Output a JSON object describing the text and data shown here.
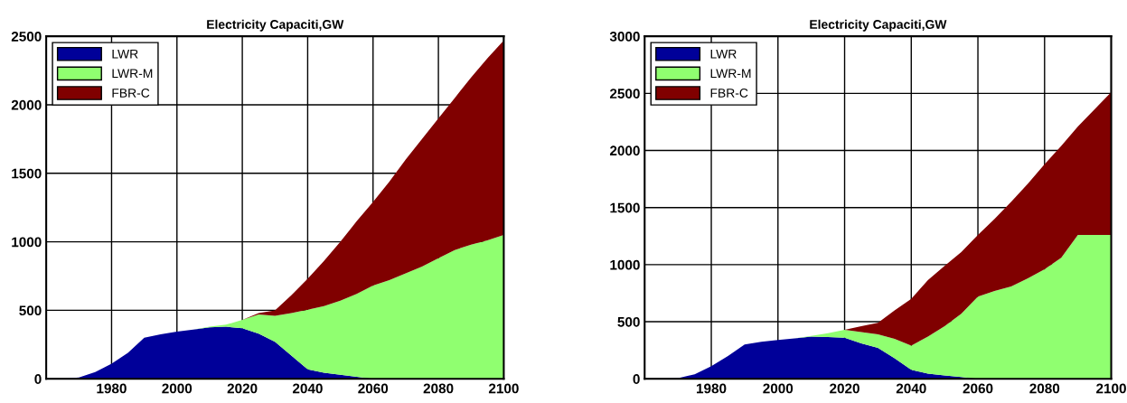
{
  "chart_data": [
    {
      "type": "area",
      "stacked": true,
      "title": "Electricity Capaciti,GW",
      "x": [
        1960,
        1965,
        1970,
        1975,
        1980,
        1985,
        1990,
        1995,
        2000,
        2005,
        2010,
        2015,
        2020,
        2025,
        2030,
        2035,
        2040,
        2045,
        2050,
        2055,
        2060,
        2065,
        2070,
        2075,
        2080,
        2085,
        2090,
        2095,
        2100
      ],
      "series": [
        {
          "name": "LWR",
          "color": "#000099",
          "values": [
            0,
            0,
            10,
            50,
            110,
            190,
            300,
            325,
            345,
            360,
            375,
            380,
            370,
            330,
            270,
            170,
            70,
            45,
            30,
            15,
            0,
            0,
            0,
            0,
            0,
            0,
            0,
            0,
            0
          ]
        },
        {
          "name": "LWR-M",
          "color": "#90ff70",
          "values": [
            0,
            0,
            0,
            0,
            0,
            0,
            0,
            0,
            0,
            0,
            5,
            15,
            60,
            140,
            190,
            310,
            435,
            485,
            540,
            605,
            680,
            720,
            770,
            820,
            880,
            940,
            980,
            1010,
            1050
          ]
        },
        {
          "name": "FBR-C",
          "color": "#800000",
          "values": [
            0,
            0,
            0,
            0,
            0,
            0,
            0,
            0,
            0,
            0,
            0,
            0,
            0,
            10,
            40,
            130,
            225,
            330,
            430,
            530,
            610,
            720,
            830,
            930,
            1020,
            1110,
            1220,
            1330,
            1420
          ]
        }
      ],
      "xlim": [
        1960,
        2100
      ],
      "xticks": [
        1980,
        2000,
        2020,
        2040,
        2060,
        2080,
        2100
      ],
      "ylim": [
        0,
        2500
      ],
      "yticks": [
        0,
        500,
        1000,
        1500,
        2000,
        2500
      ],
      "grid": true,
      "legend": "top left"
    },
    {
      "type": "area",
      "stacked": true,
      "title": "Electricity Capaciti,GW",
      "x": [
        1960,
        1965,
        1970,
        1975,
        1980,
        1985,
        1990,
        1995,
        2000,
        2005,
        2010,
        2015,
        2020,
        2025,
        2030,
        2035,
        2040,
        2045,
        2050,
        2055,
        2060,
        2065,
        2070,
        2075,
        2080,
        2085,
        2090,
        2095,
        2100
      ],
      "series": [
        {
          "name": "LWR",
          "color": "#000099",
          "values": [
            0,
            0,
            5,
            40,
            110,
            200,
            300,
            325,
            340,
            355,
            370,
            365,
            360,
            310,
            270,
            180,
            80,
            45,
            30,
            15,
            0,
            0,
            0,
            0,
            0,
            0,
            0,
            0,
            0
          ]
        },
        {
          "name": "LWR-M",
          "color": "#90ff70",
          "values": [
            0,
            0,
            0,
            0,
            0,
            0,
            0,
            0,
            0,
            0,
            5,
            35,
            70,
            100,
            120,
            170,
            210,
            325,
            430,
            555,
            720,
            770,
            810,
            880,
            960,
            1060,
            1260,
            1260,
            1260
          ]
        },
        {
          "name": "FBR-C",
          "color": "#800000",
          "values": [
            0,
            0,
            0,
            0,
            0,
            0,
            0,
            0,
            0,
            0,
            0,
            0,
            0,
            50,
            100,
            250,
            410,
            495,
            530,
            540,
            540,
            630,
            740,
            830,
            920,
            980,
            950,
            1100,
            1250
          ]
        }
      ],
      "xlim": [
        1960,
        2100
      ],
      "xticks": [
        1980,
        2000,
        2020,
        2040,
        2060,
        2080,
        2100
      ],
      "ylim": [
        0,
        3000
      ],
      "yticks": [
        0,
        500,
        1000,
        1500,
        2000,
        2500,
        3000
      ],
      "grid": true,
      "legend": "top left"
    }
  ]
}
